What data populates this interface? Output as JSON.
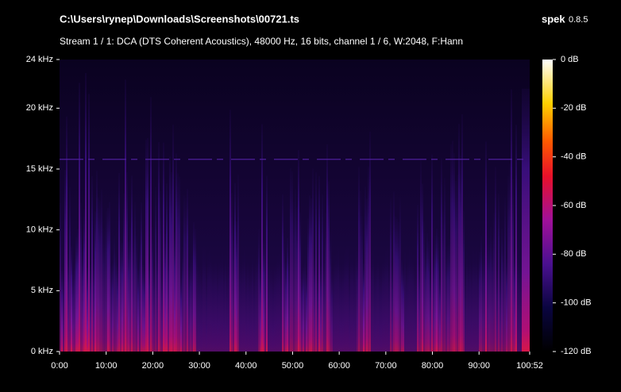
{
  "chart_data": {
    "type": "spectrogram",
    "title": "C:\\Users\\rynep\\Downloads\\Screenshots\\00721.ts",
    "app": "spek",
    "version": "0.8.5",
    "subtitle": "Stream 1 / 1: DCA (DTS Coherent Acoustics), 48000 Hz, 16 bits, channel 1 / 6, W:2048, F:Hann",
    "xlim": [
      0,
      6052
    ],
    "xticks": [
      {
        "value": 0,
        "label": "0:00"
      },
      {
        "value": 600,
        "label": "10:00"
      },
      {
        "value": 1200,
        "label": "20:00"
      },
      {
        "value": 1800,
        "label": "30:00"
      },
      {
        "value": 2400,
        "label": "40:00"
      },
      {
        "value": 3000,
        "label": "50:00"
      },
      {
        "value": 3600,
        "label": "60:00"
      },
      {
        "value": 4200,
        "label": "70:00"
      },
      {
        "value": 4800,
        "label": "80:00"
      },
      {
        "value": 5400,
        "label": "90:00"
      },
      {
        "value": 6052,
        "label": "100:52"
      }
    ],
    "ylim": [
      0,
      24
    ],
    "yticks": [
      {
        "value": 0,
        "label": "0 kHz"
      },
      {
        "value": 5,
        "label": "5 kHz"
      },
      {
        "value": 10,
        "label": "10 kHz"
      },
      {
        "value": 15,
        "label": "15 kHz"
      },
      {
        "value": 20,
        "label": "20 kHz"
      },
      {
        "value": 24,
        "label": "24 kHz"
      }
    ],
    "zlim": [
      -120,
      0
    ],
    "zticks": [
      {
        "value": 0,
        "label": "0 dB"
      },
      {
        "value": -20,
        "label": "-20 dB"
      },
      {
        "value": -40,
        "label": "-40 dB"
      },
      {
        "value": -60,
        "label": "-60 dB"
      },
      {
        "value": -80,
        "label": "-80 dB"
      },
      {
        "value": -100,
        "label": "-100 dB"
      },
      {
        "value": -120,
        "label": "-120 dB"
      }
    ]
  }
}
